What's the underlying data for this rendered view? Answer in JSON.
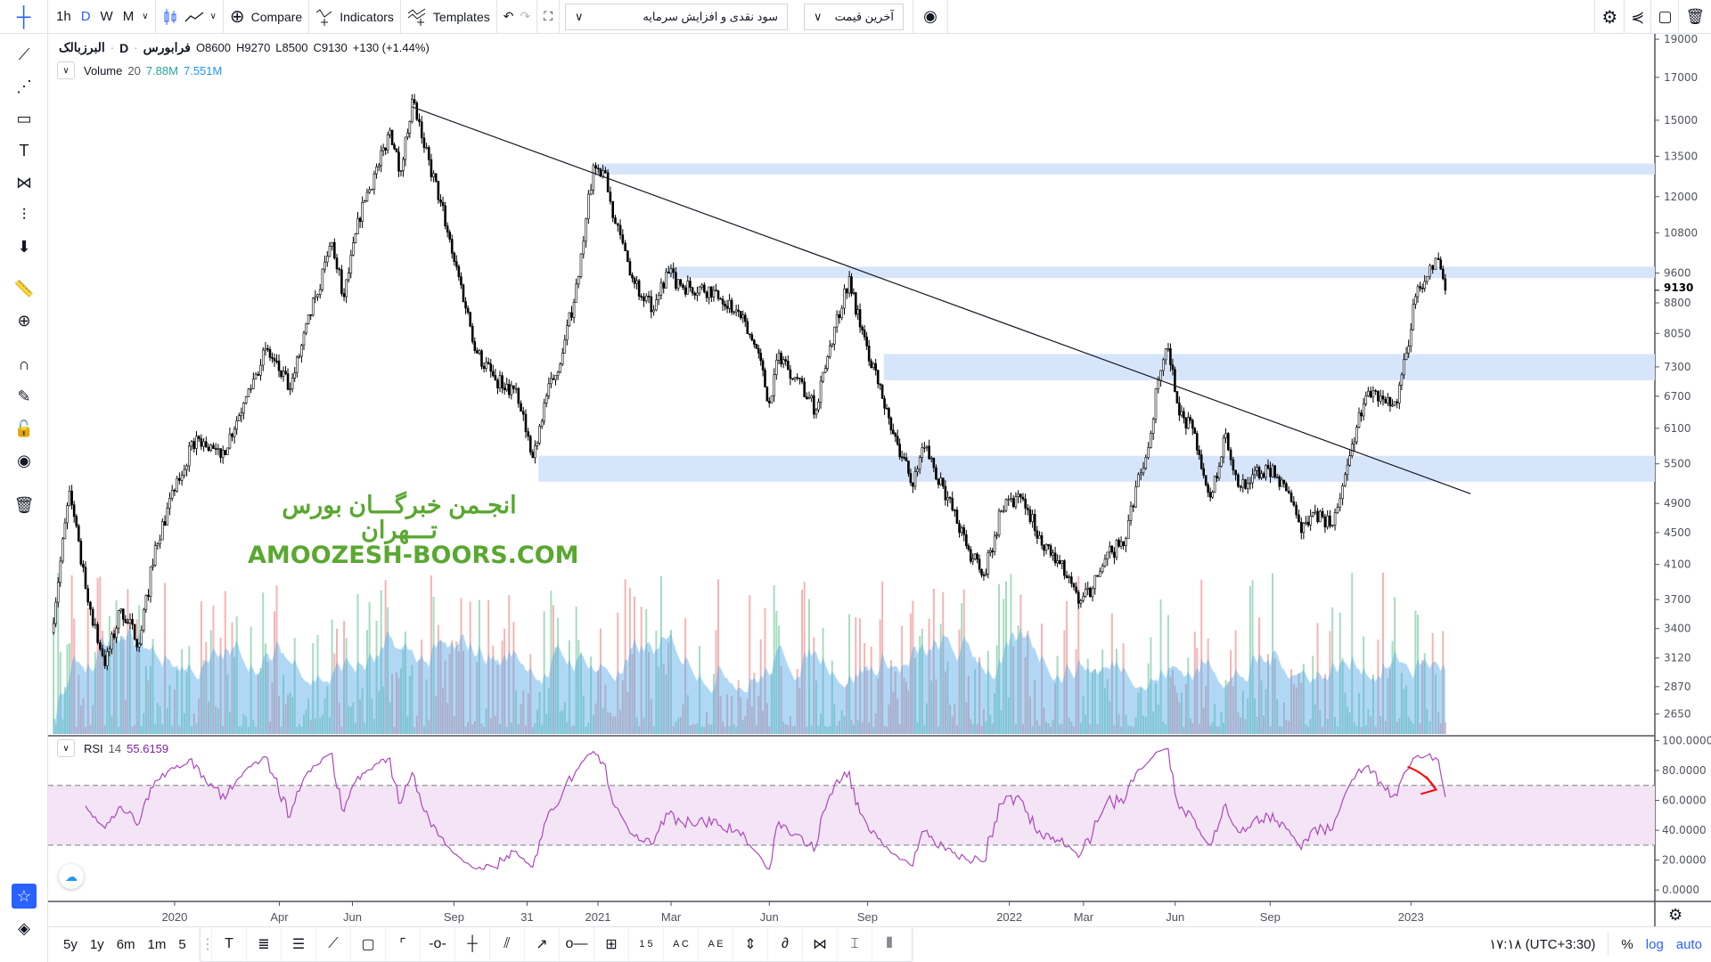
{
  "toolbar": {
    "intervals": [
      "1h",
      "D",
      "W",
      "M"
    ],
    "active_interval": "D",
    "compare_label": "Compare",
    "indicators_label": "Indicators",
    "templates_label": "Templates",
    "adjustment_select": "سود نقدی و افزایش سرمایه",
    "price_source_select": "آخرین قیمت"
  },
  "legend": {
    "symbol": "البرزبالک",
    "interval": "D",
    "exchange": "فرابورس",
    "open": "O8600",
    "high": "H9270",
    "low": "L8500",
    "close": "C9130",
    "change": "+130 (+1.44%)"
  },
  "volume_legend": {
    "name": "Volume",
    "length": "20",
    "value": "7.88M",
    "ma": "7.551M"
  },
  "rsi_legend": {
    "name": "RSI",
    "length": "14",
    "value": "55.6159"
  },
  "watermark": {
    "line1": "انجـمن خبرگـــان بورس تـــهران",
    "line2": "AMOOZESH-BOORS.COM"
  },
  "bottom": {
    "ranges": [
      "5y",
      "1y",
      "6m",
      "1m",
      "5"
    ],
    "clock": "۱۷:۱۸ (UTC+3:30)",
    "percent": "%",
    "log": "log",
    "auto": "auto"
  },
  "colors": {
    "accent": "#2962ff",
    "rsi": "#ab47bc",
    "zones": "#d6e5fa",
    "watermark": "#5aa832",
    "annotation": "#ff0000"
  },
  "chart_data": {
    "type": "candlestick",
    "scale": "log",
    "price_axis_ticks": [
      19000,
      17000,
      15000,
      13500,
      12000,
      10800,
      9600,
      8800,
      8050,
      7300,
      6700,
      6100,
      5500,
      4900,
      4500,
      4100,
      3700,
      3400,
      3120,
      2870,
      2650
    ],
    "last_price": "9130",
    "time_axis_ticks": [
      {
        "label": "2020",
        "date": "2020-01-01"
      },
      {
        "label": "Apr",
        "date": "2020-04-01"
      },
      {
        "label": "Jun",
        "date": "2020-06-01"
      },
      {
        "label": "Sep",
        "date": "2020-09-01"
      },
      {
        "label": "31",
        "date": "2020-10-31"
      },
      {
        "label": "2021",
        "date": "2021-01-01"
      },
      {
        "label": "Mar",
        "date": "2021-03-01"
      },
      {
        "label": "Jun",
        "date": "2021-06-01"
      },
      {
        "label": "Sep",
        "date": "2021-09-01"
      },
      {
        "label": "2022",
        "date": "2022-01-01"
      },
      {
        "label": "Mar",
        "date": "2022-03-01"
      },
      {
        "label": "Jun",
        "date": "2022-06-01"
      },
      {
        "label": "Sep",
        "date": "2022-09-01"
      },
      {
        "label": "2023",
        "date": "2023-01-01"
      }
    ],
    "price_path": [
      [
        "2019-09-15",
        3360
      ],
      [
        "2019-10-01",
        5080
      ],
      [
        "2019-10-15",
        3820
      ],
      [
        "2019-11-01",
        3050
      ],
      [
        "2019-11-15",
        3600
      ],
      [
        "2019-12-01",
        3250
      ],
      [
        "2019-12-15",
        4330
      ],
      [
        "2020-01-01",
        5080
      ],
      [
        "2020-01-20",
        5960
      ],
      [
        "2020-02-10",
        5600
      ],
      [
        "2020-03-01",
        6570
      ],
      [
        "2020-03-20",
        7700
      ],
      [
        "2020-04-10",
        6850
      ],
      [
        "2020-05-01",
        8960
      ],
      [
        "2020-05-15",
        10500
      ],
      [
        "2020-05-25",
        8960
      ],
      [
        "2020-06-10",
        11800
      ],
      [
        "2020-06-25",
        13140
      ],
      [
        "2020-07-05",
        14570
      ],
      [
        "2020-07-15",
        12950
      ],
      [
        "2020-07-25",
        15940
      ],
      [
        "2020-08-05",
        13850
      ],
      [
        "2020-08-20",
        11800
      ],
      [
        "2020-09-05",
        9500
      ],
      [
        "2020-09-20",
        7600
      ],
      [
        "2020-10-05",
        7020
      ],
      [
        "2020-10-20",
        6850
      ],
      [
        "2020-11-01",
        5960
      ],
      [
        "2020-11-05",
        5600
      ],
      [
        "2020-11-15",
        6570
      ],
      [
        "2020-12-01",
        7600
      ],
      [
        "2020-12-15",
        9500
      ],
      [
        "2020-12-28",
        13140
      ],
      [
        "2021-01-05",
        12950
      ],
      [
        "2021-01-15",
        11100
      ],
      [
        "2021-01-25",
        9930
      ],
      [
        "2021-02-05",
        8960
      ],
      [
        "2021-02-15",
        8620
      ],
      [
        "2021-02-25",
        9630
      ],
      [
        "2021-03-10",
        9270
      ],
      [
        "2021-04-10",
        9130
      ],
      [
        "2021-05-01",
        8620
      ],
      [
        "2021-05-20",
        7700
      ],
      [
        "2021-06-01",
        6570
      ],
      [
        "2021-06-10",
        7600
      ],
      [
        "2021-06-25",
        7080
      ],
      [
        "2021-07-15",
        6440
      ],
      [
        "2021-08-01",
        8200
      ],
      [
        "2021-08-15",
        9500
      ],
      [
        "2021-08-25",
        8200
      ],
      [
        "2021-09-10",
        6950
      ],
      [
        "2021-09-25",
        5960
      ],
      [
        "2021-10-10",
        5150
      ],
      [
        "2021-10-20",
        5770
      ],
      [
        "2021-11-05",
        5150
      ],
      [
        "2021-11-25",
        4330
      ],
      [
        "2021-12-10",
        3970
      ],
      [
        "2021-12-25",
        4790
      ],
      [
        "2022-01-10",
        4990
      ],
      [
        "2022-01-25",
        4460
      ],
      [
        "2022-02-10",
        4110
      ],
      [
        "2022-02-25",
        3660
      ],
      [
        "2022-03-10",
        3820
      ],
      [
        "2022-03-25",
        4250
      ],
      [
        "2022-04-10",
        4330
      ],
      [
        "2022-04-25",
        5330
      ],
      [
        "2022-05-05",
        5770
      ],
      [
        "2022-05-15",
        7020
      ],
      [
        "2022-05-25",
        7700
      ],
      [
        "2022-06-05",
        6340
      ],
      [
        "2022-06-20",
        6010
      ],
      [
        "2022-07-05",
        4990
      ],
      [
        "2022-07-20",
        6010
      ],
      [
        "2022-08-01",
        5150
      ],
      [
        "2022-08-15",
        5330
      ],
      [
        "2022-08-30",
        5430
      ],
      [
        "2022-09-15",
        5080
      ],
      [
        "2022-09-28",
        4500
      ],
      [
        "2022-10-10",
        4790
      ],
      [
        "2022-10-25",
        4600
      ],
      [
        "2022-11-05",
        5330
      ],
      [
        "2022-11-15",
        6120
      ],
      [
        "2022-11-25",
        6800
      ],
      [
        "2022-12-10",
        6570
      ],
      [
        "2022-12-20",
        6570
      ],
      [
        "2022-12-28",
        7600
      ],
      [
        "2023-01-05",
        8960
      ],
      [
        "2023-01-15",
        9500
      ],
      [
        "2023-01-20",
        9700
      ],
      [
        "2023-01-25",
        9980
      ],
      [
        "2023-01-31",
        9130
      ]
    ],
    "zones": [
      {
        "from": "2021-01-01",
        "top": 13220,
        "bottom": 12800
      },
      {
        "from": "2021-02-25",
        "top": 9780,
        "bottom": 9460
      },
      {
        "from": "2021-09-15",
        "top": 7580,
        "bottom": 7020
      },
      {
        "from": "2020-11-10",
        "top": 5630,
        "bottom": 5220
      }
    ],
    "trendline": [
      [
        "2020-07-25",
        15600
      ],
      [
        "2023-02-22",
        5040
      ]
    ],
    "rsi": {
      "length": 14,
      "upper": 70,
      "lower": 30,
      "range": [
        0,
        100
      ],
      "ticks": [
        "100.0000",
        "80.0000",
        "60.0000",
        "40.0000",
        "20.0000",
        "0.0000"
      ]
    }
  }
}
